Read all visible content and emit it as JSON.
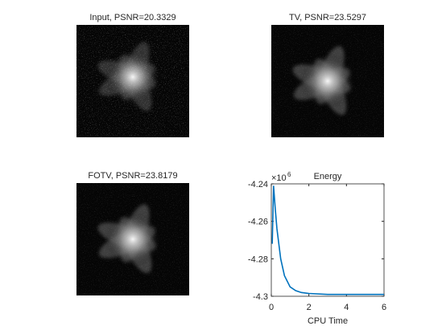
{
  "chart_data": [
    {
      "type": "image",
      "title": "Input, PSNR=20.3329"
    },
    {
      "type": "image",
      "title": "TV, PSNR=23.5297"
    },
    {
      "type": "image",
      "title": "FOTV, PSNR=23.8179"
    },
    {
      "type": "line",
      "title": "Energy",
      "xlabel": "CPU Time",
      "y_multiplier": {
        "base": "×10",
        "power": "6"
      },
      "x": [
        0.05,
        0.12,
        0.2,
        0.3,
        0.5,
        0.7,
        1,
        1.3,
        1.6,
        2,
        3,
        4,
        5,
        6
      ],
      "values": [
        -4.272,
        -4.241,
        -4.252,
        -4.264,
        -4.28,
        -4.289,
        -4.295,
        -4.297,
        -4.298,
        -4.2985,
        -4.299,
        -4.299,
        -4.299,
        -4.299
      ],
      "color": "#0072bd",
      "xlim": [
        0,
        6
      ],
      "xticks": [
        0,
        2,
        4,
        6
      ],
      "ylim": [
        -4.3,
        -4.24
      ],
      "yticks": [
        -4.24,
        -4.26,
        -4.28,
        -4.3
      ]
    }
  ]
}
